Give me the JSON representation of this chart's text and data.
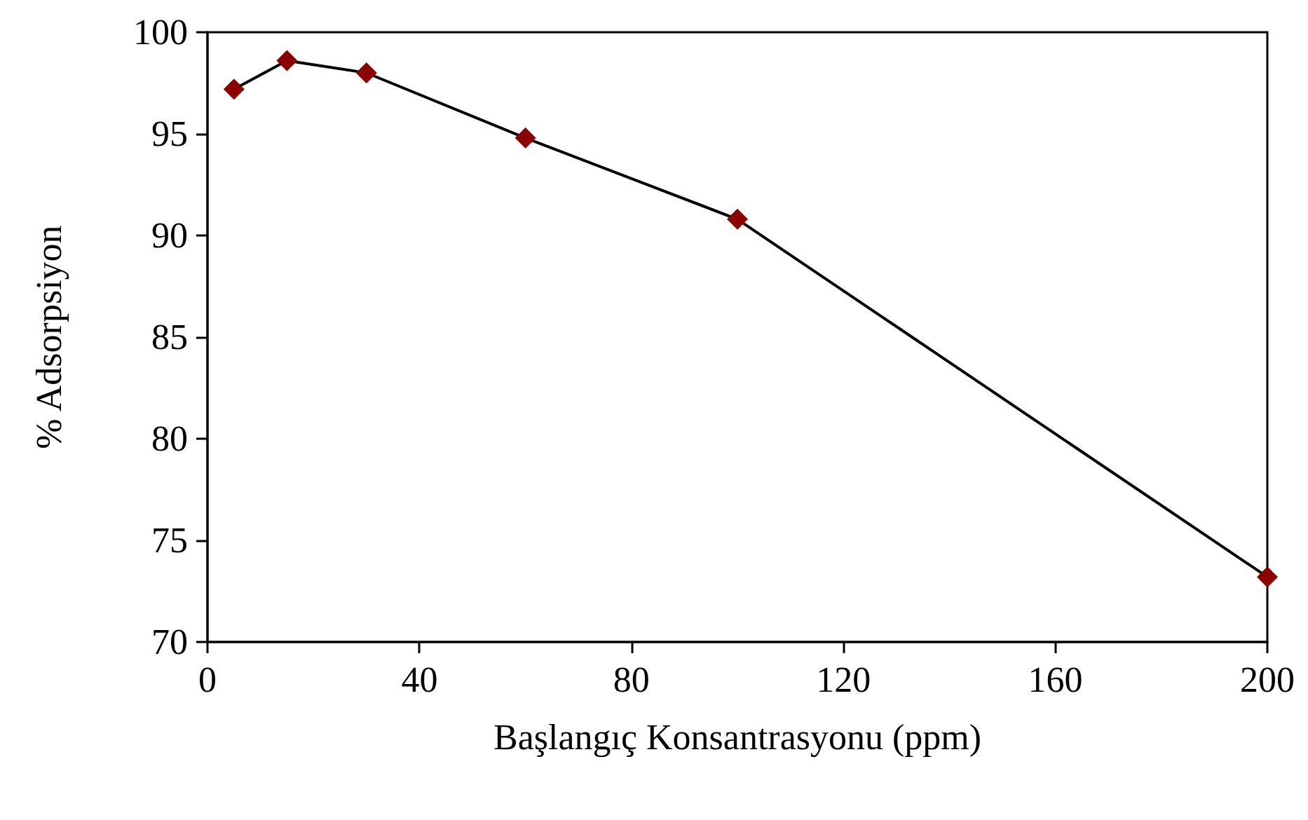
{
  "chart_data": {
    "type": "line",
    "xlabel": "Başlangıç Konsantrasyonu (ppm)",
    "ylabel": "% Adsorpsiyon",
    "x": [
      5,
      15,
      30,
      60,
      100,
      200
    ],
    "series": [
      {
        "color": "#000000",
        "values": [
          97.2,
          98.6,
          98.0,
          94.8,
          90.8,
          73.2
        ]
      }
    ],
    "colors": [
      "#8b0000",
      "#8b0000",
      "#8b0000",
      "#8b0000",
      "#8b0000",
      "#8b0000"
    ],
    "xlim": [
      0,
      200
    ],
    "xticks": [
      0,
      40,
      80,
      120,
      160,
      200
    ],
    "ylim": [
      70,
      100
    ],
    "yticks": [
      70,
      75,
      80,
      85,
      90,
      95,
      100
    ],
    "grid": false,
    "marker": "diamond",
    "line_style": "solid"
  }
}
